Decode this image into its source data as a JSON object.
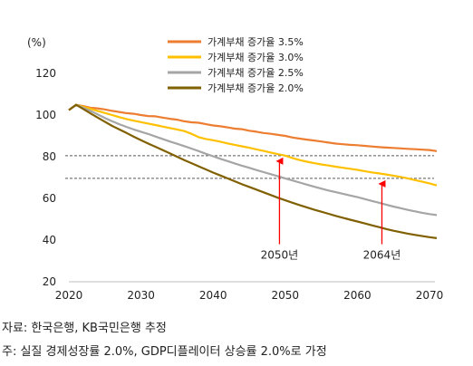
{
  "chart_data": {
    "type": "line",
    "yunit": "(%)",
    "ylim": [
      20,
      120
    ],
    "yticks": [
      20,
      40,
      60,
      80,
      100,
      120
    ],
    "xlim": [
      2020,
      2071
    ],
    "xticks": [
      2020,
      2030,
      2040,
      2050,
      2060,
      2070
    ],
    "grid": false,
    "legend_position": "top-right",
    "series": [
      {
        "name": "가계부채 증가율 3.5%",
        "color": "#ed7d31",
        "x": [
          2020,
          2021,
          2022,
          2023,
          2024,
          2025,
          2026,
          2027,
          2028,
          2029,
          2030,
          2031,
          2032,
          2033,
          2034,
          2035,
          2036,
          2037,
          2038,
          2039,
          2040,
          2041,
          2042,
          2043,
          2044,
          2045,
          2046,
          2047,
          2048,
          2049,
          2050,
          2051,
          2052,
          2053,
          2054,
          2055,
          2056,
          2057,
          2058,
          2059,
          2060,
          2061,
          2062,
          2063,
          2064,
          2065,
          2066,
          2067,
          2068,
          2069,
          2070,
          2071
        ],
        "values": [
          102.4,
          104.9,
          104.3,
          103.5,
          103.2,
          102.7,
          102.0,
          101.5,
          100.9,
          100.6,
          100.0,
          99.5,
          99.4,
          98.8,
          98.2,
          97.8,
          97.0,
          96.5,
          96.3,
          95.6,
          95.0,
          94.6,
          94.1,
          93.5,
          93.2,
          92.5,
          92.0,
          91.4,
          91.0,
          90.5,
          90.0,
          89.2,
          88.7,
          88.2,
          87.8,
          87.3,
          86.8,
          86.3,
          86.0,
          85.7,
          85.5,
          85.2,
          84.9,
          84.6,
          84.4,
          84.2,
          84.0,
          83.8,
          83.6,
          83.4,
          83.2,
          82.7
        ]
      },
      {
        "name": "가계부채 증가율 3.0%",
        "color": "#ffc000",
        "x": [
          2020,
          2021,
          2022,
          2023,
          2024,
          2025,
          2026,
          2027,
          2028,
          2029,
          2030,
          2031,
          2032,
          2033,
          2034,
          2035,
          2036,
          2037,
          2038,
          2039,
          2040,
          2041,
          2042,
          2043,
          2044,
          2045,
          2046,
          2047,
          2048,
          2049,
          2050,
          2051,
          2052,
          2053,
          2054,
          2055,
          2056,
          2057,
          2058,
          2059,
          2060,
          2061,
          2062,
          2063,
          2064,
          2065,
          2066,
          2067,
          2068,
          2069,
          2070,
          2071
        ],
        "values": [
          102.4,
          104.9,
          104.0,
          103.0,
          102.0,
          101.0,
          100.0,
          99.0,
          98.1,
          97.3,
          96.6,
          95.9,
          95.2,
          94.5,
          93.8,
          93.1,
          92.3,
          91.0,
          89.4,
          88.5,
          87.9,
          87.2,
          86.4,
          85.7,
          85.0,
          84.3,
          83.5,
          82.8,
          82.0,
          81.2,
          80.5,
          79.4,
          78.4,
          77.6,
          76.9,
          76.3,
          75.8,
          75.2,
          74.7,
          74.2,
          73.7,
          73.1,
          72.5,
          72.0,
          71.5,
          70.9,
          70.3,
          69.6,
          68.8,
          68.0,
          67.2,
          66.2
        ]
      },
      {
        "name": "가계부채 증가율 2.5%",
        "color": "#a5a5a5",
        "x": [
          2020,
          2021,
          2022,
          2023,
          2024,
          2025,
          2026,
          2027,
          2028,
          2029,
          2030,
          2031,
          2032,
          2033,
          2034,
          2035,
          2036,
          2037,
          2038,
          2039,
          2040,
          2041,
          2042,
          2043,
          2044,
          2045,
          2046,
          2047,
          2048,
          2049,
          2050,
          2051,
          2052,
          2053,
          2054,
          2055,
          2056,
          2057,
          2058,
          2059,
          2060,
          2061,
          2062,
          2063,
          2064,
          2065,
          2066,
          2067,
          2068,
          2069,
          2070,
          2071
        ],
        "values": [
          102.4,
          104.9,
          103.5,
          102.0,
          100.3,
          98.6,
          97.0,
          95.6,
          94.3,
          93.1,
          92.0,
          90.9,
          89.7,
          88.5,
          87.3,
          86.2,
          85.1,
          83.9,
          82.7,
          81.4,
          80.2,
          79.0,
          77.9,
          76.8,
          75.7,
          74.7,
          73.6,
          72.6,
          71.6,
          70.6,
          69.6,
          68.6,
          67.6,
          66.6,
          65.6,
          64.7,
          63.8,
          63.0,
          62.2,
          61.4,
          60.6,
          59.7,
          58.8,
          57.9,
          57.0,
          56.1,
          55.3,
          54.5,
          53.8,
          53.1,
          52.5,
          52.0
        ]
      },
      {
        "name": "가계부채 증가율 2.0%",
        "color": "#806000",
        "x": [
          2020,
          2021,
          2022,
          2023,
          2024,
          2025,
          2026,
          2027,
          2028,
          2029,
          2030,
          2031,
          2032,
          2033,
          2034,
          2035,
          2036,
          2037,
          2038,
          2039,
          2040,
          2041,
          2042,
          2043,
          2044,
          2045,
          2046,
          2047,
          2048,
          2049,
          2050,
          2051,
          2052,
          2053,
          2054,
          2055,
          2056,
          2057,
          2058,
          2059,
          2060,
          2061,
          2062,
          2063,
          2064,
          2065,
          2066,
          2067,
          2068,
          2069,
          2070,
          2071
        ],
        "values": [
          102.4,
          104.9,
          102.9,
          100.8,
          98.8,
          96.8,
          94.8,
          93.1,
          91.4,
          89.6,
          87.9,
          86.3,
          84.8,
          83.2,
          81.6,
          80.0,
          78.4,
          76.9,
          75.4,
          73.9,
          72.4,
          71.0,
          69.6,
          68.2,
          66.8,
          65.5,
          64.2,
          62.9,
          61.6,
          60.3,
          59.1,
          57.9,
          56.8,
          55.7,
          54.6,
          53.6,
          52.6,
          51.6,
          50.7,
          49.8,
          48.9,
          48.0,
          47.1,
          46.2,
          45.3,
          44.5,
          43.8,
          43.1,
          42.5,
          41.9,
          41.4,
          40.9
        ]
      }
    ],
    "reference_lines": [
      {
        "y": 80.5,
        "style": "dashed"
      },
      {
        "y": 69.6,
        "style": "dashed"
      }
    ],
    "annotations": [
      {
        "label": "2050년",
        "x": 2049.2,
        "arrow_from_y": 38,
        "arrow_to_y": 80.5,
        "color": "#ff0000"
      },
      {
        "label": "2064년",
        "x": 2063.4,
        "arrow_from_y": 38,
        "arrow_to_y": 69.6,
        "color": "#ff0000"
      }
    ]
  },
  "footnotes": {
    "source": "자료: 한국은행, KB국민은행 추정",
    "assumption": "주: 실질 경제성장률 2.0%, GDP디플레이터 상승률 2.0%로 가정"
  }
}
